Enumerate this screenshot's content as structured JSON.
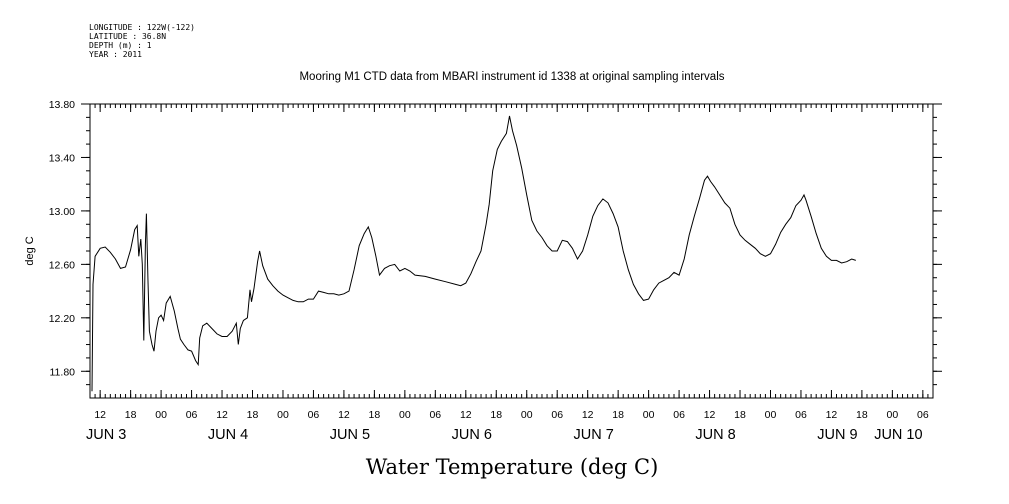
{
  "meta": {
    "longitude": "LONGITUDE : 122W(-122)",
    "latitude": "LATITUDE : 36.8N",
    "depth": "DEPTH (m) : 1",
    "year": "YEAR : 2011"
  },
  "chart_data": {
    "type": "line",
    "title": "Mooring M1 CTD data from MBARI instrument id 1338 at original sampling intervals",
    "xlabel": "Water Temperature (deg C)",
    "ylabel": "deg C",
    "xlim": [
      10,
      176
    ],
    "ylim": [
      11.6,
      13.8
    ],
    "x_units": "hours since JUN 3 00:00 (2011)",
    "yticks": [
      11.8,
      12.2,
      12.6,
      13.0,
      13.4,
      13.8
    ],
    "ytick_labels": [
      "11.80",
      "12.20",
      "12.60",
      "13.00",
      "13.40",
      "13.80"
    ],
    "xticks": [
      {
        "hour": 12,
        "label": "12"
      },
      {
        "hour": 18,
        "label": "18"
      },
      {
        "hour": 24,
        "label": "00"
      },
      {
        "hour": 30,
        "label": "06"
      },
      {
        "hour": 36,
        "label": "12"
      },
      {
        "hour": 42,
        "label": "18"
      },
      {
        "hour": 48,
        "label": "00"
      },
      {
        "hour": 54,
        "label": "06"
      },
      {
        "hour": 60,
        "label": "12"
      },
      {
        "hour": 66,
        "label": "18"
      },
      {
        "hour": 72,
        "label": "00"
      },
      {
        "hour": 78,
        "label": "06"
      },
      {
        "hour": 84,
        "label": "12"
      },
      {
        "hour": 90,
        "label": "18"
      },
      {
        "hour": 96,
        "label": "00"
      },
      {
        "hour": 102,
        "label": "06"
      },
      {
        "hour": 108,
        "label": "12"
      },
      {
        "hour": 114,
        "label": "18"
      },
      {
        "hour": 120,
        "label": "00"
      },
      {
        "hour": 126,
        "label": "06"
      },
      {
        "hour": 132,
        "label": "12"
      },
      {
        "hour": 138,
        "label": "18"
      },
      {
        "hour": 144,
        "label": "00"
      },
      {
        "hour": 150,
        "label": "06"
      },
      {
        "hour": 156,
        "label": "12"
      },
      {
        "hour": 162,
        "label": "18"
      },
      {
        "hour": 168,
        "label": "00"
      },
      {
        "hour": 174,
        "label": "06"
      }
    ],
    "day_labels": [
      {
        "hour": 12,
        "label": "JUN  3"
      },
      {
        "hour": 36,
        "label": "JUN  4"
      },
      {
        "hour": 60,
        "label": "JUN  5"
      },
      {
        "hour": 84,
        "label": "JUN  6"
      },
      {
        "hour": 108,
        "label": "JUN  7"
      },
      {
        "hour": 132,
        "label": "JUN  8"
      },
      {
        "hour": 156,
        "label": "JUN  9"
      },
      {
        "hour": 168,
        "label": "JUN 10"
      }
    ],
    "series": [
      {
        "points": [
          [
            10.4,
            11.65
          ],
          [
            10.6,
            12.45
          ],
          [
            11.0,
            12.66
          ],
          [
            12.0,
            12.72
          ],
          [
            13.0,
            12.73
          ],
          [
            14.0,
            12.69
          ],
          [
            15.0,
            12.64
          ],
          [
            16.0,
            12.57
          ],
          [
            17.0,
            12.58
          ],
          [
            18.0,
            12.71
          ],
          [
            18.8,
            12.86
          ],
          [
            19.3,
            12.89
          ],
          [
            19.6,
            12.66
          ],
          [
            20.0,
            12.79
          ],
          [
            20.3,
            12.6
          ],
          [
            20.6,
            12.03
          ],
          [
            20.9,
            12.75
          ],
          [
            21.1,
            12.98
          ],
          [
            21.4,
            12.5
          ],
          [
            21.7,
            12.1
          ],
          [
            22.2,
            12.0
          ],
          [
            22.6,
            11.95
          ],
          [
            23.0,
            12.1
          ],
          [
            23.5,
            12.2
          ],
          [
            24.0,
            12.22
          ],
          [
            24.5,
            12.18
          ],
          [
            25.0,
            12.31
          ],
          [
            25.8,
            12.36
          ],
          [
            26.6,
            12.25
          ],
          [
            27.3,
            12.12
          ],
          [
            27.8,
            12.04
          ],
          [
            28.5,
            12.0
          ],
          [
            29.3,
            11.96
          ],
          [
            30.0,
            11.95
          ],
          [
            30.8,
            11.88
          ],
          [
            31.3,
            11.85
          ],
          [
            31.6,
            12.05
          ],
          [
            32.2,
            12.14
          ],
          [
            33.0,
            12.16
          ],
          [
            34.0,
            12.12
          ],
          [
            35.0,
            12.08
          ],
          [
            36.0,
            12.06
          ],
          [
            37.0,
            12.06
          ],
          [
            38.0,
            12.1
          ],
          [
            38.8,
            12.16
          ],
          [
            39.2,
            12.0
          ],
          [
            39.6,
            12.12
          ],
          [
            40.2,
            12.18
          ],
          [
            41.0,
            12.2
          ],
          [
            41.5,
            12.41
          ],
          [
            41.8,
            12.32
          ],
          [
            42.3,
            12.42
          ],
          [
            43.0,
            12.62
          ],
          [
            43.4,
            12.7
          ],
          [
            44.0,
            12.59
          ],
          [
            45.0,
            12.49
          ],
          [
            46.0,
            12.44
          ],
          [
            47.0,
            12.4
          ],
          [
            48.0,
            12.37
          ],
          [
            49.0,
            12.35
          ],
          [
            50.0,
            12.33
          ],
          [
            51.0,
            12.32
          ],
          [
            52.0,
            12.32
          ],
          [
            53.0,
            12.34
          ],
          [
            54.0,
            12.34
          ],
          [
            55.0,
            12.4
          ],
          [
            56.0,
            12.39
          ],
          [
            57.0,
            12.38
          ],
          [
            58.0,
            12.38
          ],
          [
            59.0,
            12.37
          ],
          [
            60.0,
            12.38
          ],
          [
            61.0,
            12.4
          ],
          [
            62.0,
            12.56
          ],
          [
            63.0,
            12.74
          ],
          [
            64.0,
            12.83
          ],
          [
            64.8,
            12.88
          ],
          [
            65.5,
            12.8
          ],
          [
            66.3,
            12.66
          ],
          [
            67.0,
            12.52
          ],
          [
            68.0,
            12.57
          ],
          [
            69.0,
            12.59
          ],
          [
            70.0,
            12.6
          ],
          [
            71.0,
            12.55
          ],
          [
            72.0,
            12.57
          ],
          [
            73.0,
            12.55
          ],
          [
            74.0,
            12.52
          ],
          [
            76.0,
            12.51
          ],
          [
            78.0,
            12.49
          ],
          [
            80.0,
            12.47
          ],
          [
            82.0,
            12.45
          ],
          [
            83.0,
            12.44
          ],
          [
            84.0,
            12.46
          ],
          [
            85.0,
            12.53
          ],
          [
            86.0,
            12.62
          ],
          [
            87.0,
            12.7
          ],
          [
            88.0,
            12.9
          ],
          [
            88.6,
            13.05
          ],
          [
            89.3,
            13.3
          ],
          [
            90.2,
            13.46
          ],
          [
            91.0,
            13.52
          ],
          [
            92.0,
            13.58
          ],
          [
            92.6,
            13.71
          ],
          [
            93.2,
            13.6
          ],
          [
            94.0,
            13.49
          ],
          [
            95.0,
            13.32
          ],
          [
            96.0,
            13.12
          ],
          [
            97.0,
            12.93
          ],
          [
            98.0,
            12.85
          ],
          [
            99.0,
            12.8
          ],
          [
            100.0,
            12.74
          ],
          [
            101.0,
            12.7
          ],
          [
            102.0,
            12.7
          ],
          [
            103.0,
            12.78
          ],
          [
            104.0,
            12.77
          ],
          [
            105.0,
            12.72
          ],
          [
            106.0,
            12.64
          ],
          [
            107.0,
            12.7
          ],
          [
            108.0,
            12.82
          ],
          [
            109.0,
            12.96
          ],
          [
            110.0,
            13.04
          ],
          [
            111.0,
            13.09
          ],
          [
            112.0,
            13.06
          ],
          [
            113.0,
            12.98
          ],
          [
            114.0,
            12.88
          ],
          [
            115.0,
            12.7
          ],
          [
            116.0,
            12.56
          ],
          [
            117.0,
            12.45
          ],
          [
            118.0,
            12.38
          ],
          [
            119.0,
            12.33
          ],
          [
            120.0,
            12.34
          ],
          [
            121.0,
            12.41
          ],
          [
            122.0,
            12.46
          ],
          [
            123.0,
            12.48
          ],
          [
            124.0,
            12.5
          ],
          [
            125.0,
            12.54
          ],
          [
            126.0,
            12.52
          ],
          [
            127.0,
            12.64
          ],
          [
            128.0,
            12.82
          ],
          [
            129.0,
            12.96
          ],
          [
            130.0,
            13.09
          ],
          [
            131.0,
            13.23
          ],
          [
            131.6,
            13.26
          ],
          [
            132.2,
            13.22
          ],
          [
            133.0,
            13.18
          ],
          [
            134.0,
            13.12
          ],
          [
            135.0,
            13.06
          ],
          [
            136.0,
            13.02
          ],
          [
            137.0,
            12.9
          ],
          [
            138.0,
            12.82
          ],
          [
            139.0,
            12.78
          ],
          [
            140.0,
            12.75
          ],
          [
            141.0,
            12.72
          ],
          [
            142.0,
            12.68
          ],
          [
            143.0,
            12.66
          ],
          [
            144.0,
            12.68
          ],
          [
            145.0,
            12.75
          ],
          [
            146.0,
            12.84
          ],
          [
            147.0,
            12.9
          ],
          [
            148.0,
            12.95
          ],
          [
            149.0,
            13.04
          ],
          [
            150.0,
            13.08
          ],
          [
            150.6,
            13.12
          ],
          [
            151.0,
            13.08
          ],
          [
            152.0,
            12.96
          ],
          [
            153.0,
            12.83
          ],
          [
            154.0,
            12.72
          ],
          [
            155.0,
            12.66
          ],
          [
            156.0,
            12.63
          ],
          [
            157.0,
            12.63
          ],
          [
            158.0,
            12.61
          ],
          [
            159.0,
            12.62
          ],
          [
            160.0,
            12.64
          ],
          [
            160.8,
            12.63
          ]
        ]
      }
    ]
  }
}
